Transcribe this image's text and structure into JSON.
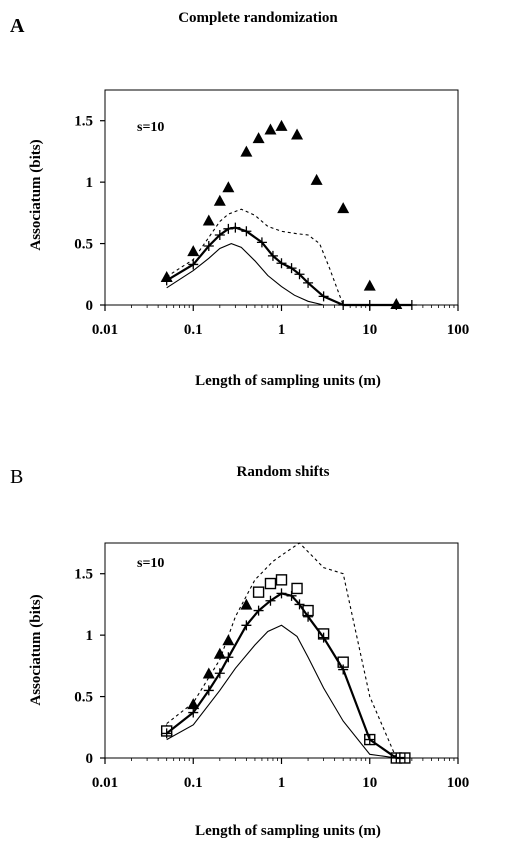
{
  "chart_data": [
    {
      "type": "line",
      "panel_letter": "A",
      "title": "Complete randomization",
      "annotation": "s=10",
      "xlabel": "Length of sampling units (m)",
      "ylabel": "Associatum (bits)",
      "x_scale": "log",
      "xlim": [
        0.01,
        100
      ],
      "ylim": [
        0,
        1.75
      ],
      "xticks": [
        0.01,
        0.1,
        1,
        10,
        100
      ],
      "xtick_labels": [
        "0.01",
        "0.1",
        "1",
        "10",
        "100"
      ],
      "yticks": [
        0,
        0.5,
        1,
        1.5
      ],
      "ytick_labels": [
        "0",
        "0.5",
        "1",
        "1.5"
      ],
      "grid": false,
      "series": [
        {
          "style": "triangle-markers",
          "x": [
            0.05,
            0.1,
            0.15,
            0.2,
            0.25,
            0.4,
            0.55,
            0.75,
            1,
            1.5,
            2.5,
            5,
            10,
            20
          ],
          "y": [
            0.22,
            0.43,
            0.68,
            0.84,
            0.95,
            1.24,
            1.35,
            1.42,
            1.45,
            1.38,
            1.01,
            0.78,
            0.15,
            0.0
          ]
        },
        {
          "style": "dotted-line",
          "x": [
            0.05,
            0.1,
            0.15,
            0.2,
            0.25,
            0.35,
            0.5,
            0.7,
            1,
            1.5,
            2,
            2.7,
            3.5,
            5,
            10,
            20,
            30
          ],
          "y": [
            0.23,
            0.37,
            0.55,
            0.68,
            0.74,
            0.78,
            0.73,
            0.64,
            0.6,
            0.58,
            0.57,
            0.5,
            0.3,
            0.0,
            0.0,
            0.0,
            0.0
          ]
        },
        {
          "style": "thick-line-plus-markers",
          "x": [
            0.05,
            0.1,
            0.15,
            0.2,
            0.25,
            0.3,
            0.4,
            0.6,
            0.8,
            1,
            1.3,
            1.6,
            2,
            3,
            5,
            10,
            20,
            30
          ],
          "y": [
            0.2,
            0.33,
            0.48,
            0.57,
            0.62,
            0.63,
            0.6,
            0.51,
            0.4,
            0.34,
            0.3,
            0.25,
            0.18,
            0.07,
            0.0,
            0.0,
            0.0,
            0.0
          ]
        },
        {
          "style": "thin-line",
          "x": [
            0.05,
            0.1,
            0.15,
            0.2,
            0.27,
            0.35,
            0.5,
            0.7,
            1,
            1.4,
            2,
            3,
            5,
            30
          ],
          "y": [
            0.14,
            0.28,
            0.38,
            0.46,
            0.5,
            0.47,
            0.36,
            0.24,
            0.15,
            0.08,
            0.03,
            0.0,
            0.0,
            0.0
          ]
        }
      ]
    },
    {
      "type": "line",
      "panel_letter": "B",
      "title": "Random shifts",
      "annotation": "s=10",
      "xlabel": "Length of sampling units (m)",
      "ylabel": "Associatum (bits)",
      "x_scale": "log",
      "xlim": [
        0.01,
        100
      ],
      "ylim": [
        0,
        1.75
      ],
      "xticks": [
        0.01,
        0.1,
        1,
        10,
        100
      ],
      "xtick_labels": [
        "0.01",
        "0.1",
        "1",
        "10",
        "100"
      ],
      "yticks": [
        0,
        0.5,
        1,
        1.5
      ],
      "ytick_labels": [
        "0",
        "0.5",
        "1",
        "1.5"
      ],
      "grid": false,
      "series": [
        {
          "style": "triangle-markers",
          "x": [
            0.05,
            0.1,
            0.15,
            0.2,
            0.25,
            0.4
          ],
          "y": [
            0.22,
            0.43,
            0.68,
            0.84,
            0.95,
            1.24
          ]
        },
        {
          "style": "square-markers",
          "x": [
            0.05,
            0.55,
            0.75,
            1,
            1.5,
            2,
            3,
            5,
            10,
            20,
            25
          ],
          "y": [
            0.22,
            1.35,
            1.42,
            1.45,
            1.38,
            1.2,
            1.01,
            0.78,
            0.15,
            0.0,
            0.0
          ]
        },
        {
          "style": "dotted-line",
          "x": [
            0.05,
            0.1,
            0.2,
            0.3,
            0.5,
            0.8,
            1,
            1.6,
            3,
            5,
            10,
            20
          ],
          "y": [
            0.28,
            0.45,
            0.8,
            1.15,
            1.45,
            1.6,
            1.65,
            1.75,
            1.55,
            1.5,
            0.5,
            0.0
          ]
        },
        {
          "style": "thick-line-plus-markers",
          "x": [
            0.05,
            0.1,
            0.15,
            0.2,
            0.25,
            0.4,
            0.55,
            0.75,
            1,
            1.3,
            1.6,
            2,
            3,
            5,
            10,
            20,
            25
          ],
          "y": [
            0.2,
            0.37,
            0.55,
            0.69,
            0.82,
            1.08,
            1.2,
            1.28,
            1.34,
            1.32,
            1.25,
            1.15,
            0.98,
            0.72,
            0.15,
            0.0,
            0.0
          ]
        },
        {
          "style": "thin-line",
          "x": [
            0.05,
            0.1,
            0.2,
            0.3,
            0.5,
            0.7,
            1,
            1.5,
            2,
            3,
            5,
            10,
            20
          ],
          "y": [
            0.15,
            0.27,
            0.55,
            0.73,
            0.92,
            1.03,
            1.08,
            0.99,
            0.82,
            0.57,
            0.3,
            0.03,
            0.0
          ]
        }
      ]
    }
  ]
}
